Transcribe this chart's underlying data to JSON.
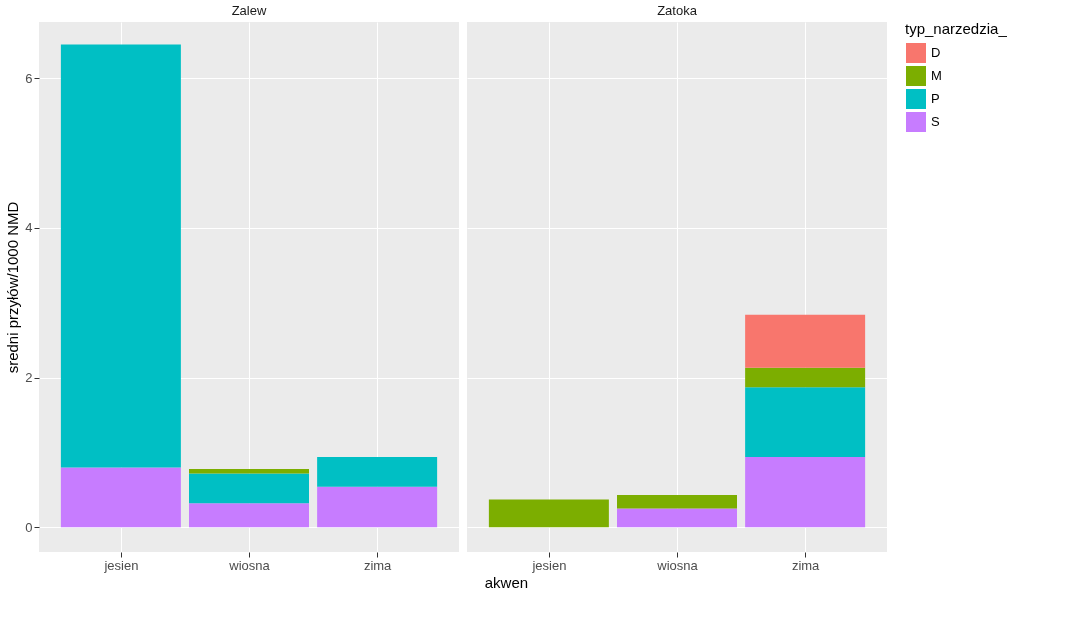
{
  "chart_data": [
    {
      "type": "bar",
      "title": "Zalew",
      "xlabel": "akwen",
      "ylabel": "sredni przyłów/1000 NMD",
      "legend": "right",
      "stacked": true,
      "grid": true,
      "categories": [
        "jesien",
        "wiosna",
        "zima"
      ],
      "ylim": [
        -0.33,
        6.75
      ],
      "yticks": [
        0,
        2,
        4,
        6
      ],
      "series": [
        {
          "name": "S",
          "color": "#c77cff",
          "values": [
            0.8,
            0.32,
            0.54
          ]
        },
        {
          "name": "P",
          "color": "#00bfc4",
          "values": [
            5.65,
            0.4,
            0.4
          ]
        },
        {
          "name": "M",
          "color": "#7cae00",
          "values": [
            null,
            0.06,
            null
          ]
        }
      ]
    },
    {
      "type": "bar",
      "title": "Zatoka",
      "legend_title": "typ_narzedzia_",
      "legend": "right",
      "stacked": true,
      "grid": true,
      "tick_labels": "x",
      "categories": [
        "jesien",
        "wiosna",
        "zima"
      ],
      "ylim": [
        -0.33,
        6.75
      ],
      "yticks": [
        0,
        2,
        4,
        6
      ],
      "series": [
        {
          "name": "S",
          "color": "#c77cff",
          "values": [
            null,
            0.25,
            0.94
          ]
        },
        {
          "name": "P",
          "color": "#00bfc4",
          "values": [
            null,
            null,
            0.93
          ]
        },
        {
          "name": "M",
          "color": "#7cae00",
          "values": [
            0.37,
            0.18,
            0.26
          ]
        },
        {
          "name": "D",
          "color": "#f8766d",
          "values": [
            null,
            null,
            0.71
          ]
        }
      ]
    }
  ]
}
